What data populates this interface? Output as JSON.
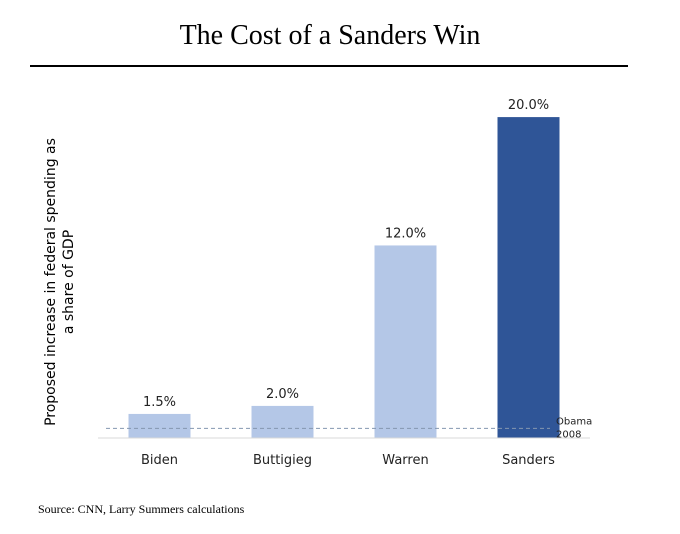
{
  "chart_data": {
    "type": "bar",
    "title": "The Cost of a Sanders Win",
    "ylabel": "Proposed increase in federal spending as a share of GDP",
    "xlabel": "",
    "categories": [
      "Biden",
      "Buttigieg",
      "Warren",
      "Sanders"
    ],
    "values": [
      1.5,
      2.0,
      12.0,
      20.0
    ],
    "value_labels": [
      "1.5%",
      "2.0%",
      "12.0%",
      "20.0%"
    ],
    "colors": [
      "#b4c7e7",
      "#b4c7e7",
      "#b4c7e7",
      "#2f5597"
    ],
    "ylim": [
      0,
      22
    ],
    "grid": false,
    "reference_line": {
      "value": 0.6,
      "label_line1": "Obama",
      "label_line2": "2008",
      "color": "#8497b0"
    }
  },
  "source": "Source: CNN, Larry Summers calculations"
}
